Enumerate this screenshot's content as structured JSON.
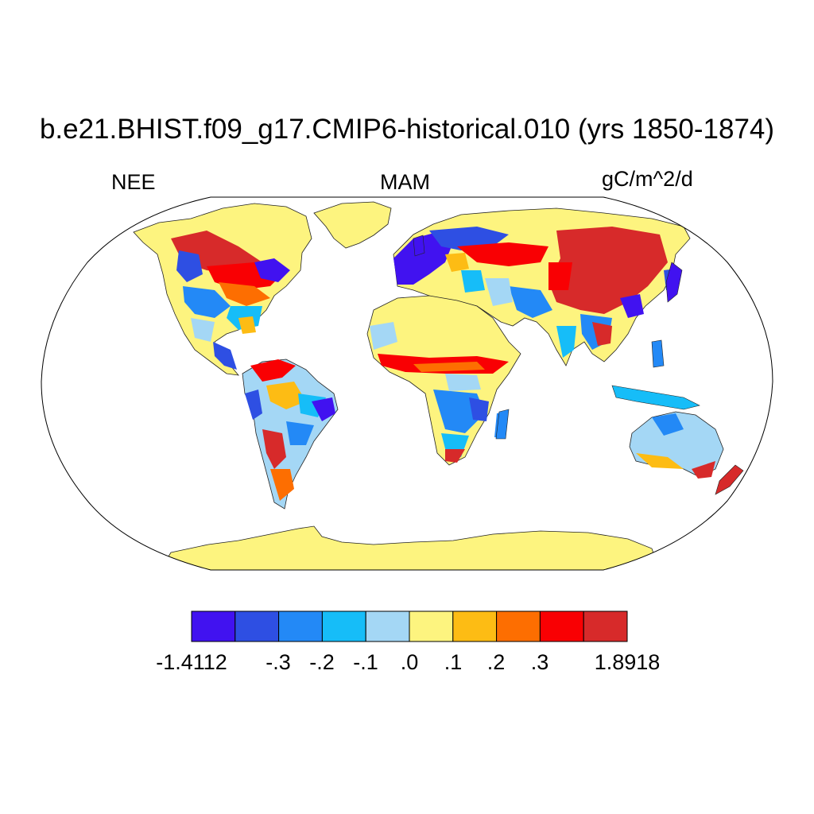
{
  "title": "b.e21.BHIST.f09_g17.CMIP6-historical.010 (yrs 1850-1874)",
  "subtitles": {
    "left": "NEE",
    "center": "MAM",
    "right": "gC/m^2/d"
  },
  "projection": "Robinson",
  "colorbar": {
    "colors": [
      "#4112f0",
      "#2e4fe3",
      "#2389f6",
      "#16bdf8",
      "#a4d7f5",
      "#fdf47f",
      "#fdbc14",
      "#fd6e01",
      "#f90003",
      "#d72a2a"
    ],
    "labels": [
      "-1.4112",
      "-.3",
      "-.2",
      "-.1",
      ".0",
      ".1",
      ".2",
      ".3",
      "1.8918"
    ],
    "min": -1.4112,
    "max": 1.8918,
    "levels": [
      -0.3,
      -0.2,
      -0.1,
      0.0,
      0.1,
      0.2,
      0.3
    ]
  }
}
